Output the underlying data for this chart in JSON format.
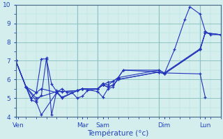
{
  "title": "",
  "xlabel": "Température (°c)",
  "background_color": "#d4eeee",
  "line_color": "#2233bb",
  "grid_major_color": "#88bbbb",
  "grid_minor_color": "#aadddd",
  "text_color": "#2244bb",
  "ylim": [
    4,
    10
  ],
  "xlim": [
    0,
    40
  ],
  "yticks": [
    4,
    5,
    6,
    7,
    8,
    9,
    10
  ],
  "day_labels": [
    "Ven",
    "Mar",
    "Sam",
    "Dim",
    "Lun"
  ],
  "day_positions": [
    0.5,
    13,
    17,
    29,
    37
  ],
  "vline_positions": [
    0,
    12,
    16,
    28,
    36
  ],
  "series": [
    {
      "x": [
        0,
        2,
        3,
        4,
        5,
        8,
        9,
        10,
        11,
        12,
        13,
        14,
        16,
        17,
        18,
        19,
        20,
        21,
        28,
        29,
        31,
        33,
        34,
        36,
        37,
        38,
        40
      ],
      "y": [
        7.0,
        5.6,
        4.9,
        4.8,
        4.1,
        5.3,
        5.5,
        5.3,
        5.3,
        5.0,
        5.1,
        5.4,
        5.5,
        5.8,
        5.7,
        5.9,
        6.1,
        6.5,
        6.4,
        6.3,
        7.6,
        9.2,
        9.9,
        9.5,
        8.6,
        8.4,
        8.4
      ]
    },
    {
      "x": [
        0,
        2,
        3,
        4,
        5,
        8,
        9,
        12,
        13,
        16,
        17,
        18,
        19,
        20,
        28,
        29,
        36,
        37,
        40
      ],
      "y": [
        7.0,
        5.6,
        5.0,
        5.3,
        5.5,
        5.3,
        5.0,
        5.4,
        5.5,
        5.5,
        5.7,
        5.6,
        5.7,
        6.0,
        6.4,
        6.3,
        7.6,
        8.5,
        8.4
      ]
    },
    {
      "x": [
        0,
        2,
        4,
        5,
        6,
        7,
        8,
        9,
        12,
        13,
        16,
        17,
        18,
        19,
        20,
        28,
        29,
        36,
        37,
        40
      ],
      "y": [
        7.0,
        5.6,
        5.3,
        7.1,
        7.1,
        5.75,
        5.35,
        5.35,
        5.4,
        5.5,
        5.5,
        5.7,
        5.6,
        5.7,
        6.0,
        6.4,
        6.3,
        7.6,
        8.5,
        8.4
      ]
    },
    {
      "x": [
        0,
        2,
        4,
        5,
        6,
        7,
        8,
        9,
        12,
        13,
        16,
        17,
        18,
        19,
        20,
        28,
        29,
        36,
        37
      ],
      "y": [
        7.0,
        5.6,
        4.85,
        5.15,
        7.15,
        4.1,
        5.4,
        5.35,
        5.4,
        5.5,
        5.35,
        5.05,
        5.5,
        5.6,
        6.1,
        6.5,
        6.35,
        6.3,
        5.05
      ]
    },
    {
      "x": [
        0,
        2,
        4,
        8,
        9,
        12,
        13,
        16,
        17,
        18,
        19,
        20,
        21,
        28,
        29,
        36,
        37,
        40
      ],
      "y": [
        7.0,
        5.6,
        5.0,
        5.35,
        5.05,
        5.4,
        5.5,
        5.5,
        5.7,
        5.85,
        5.9,
        6.1,
        6.5,
        6.5,
        6.35,
        7.65,
        8.5,
        8.4
      ]
    }
  ]
}
